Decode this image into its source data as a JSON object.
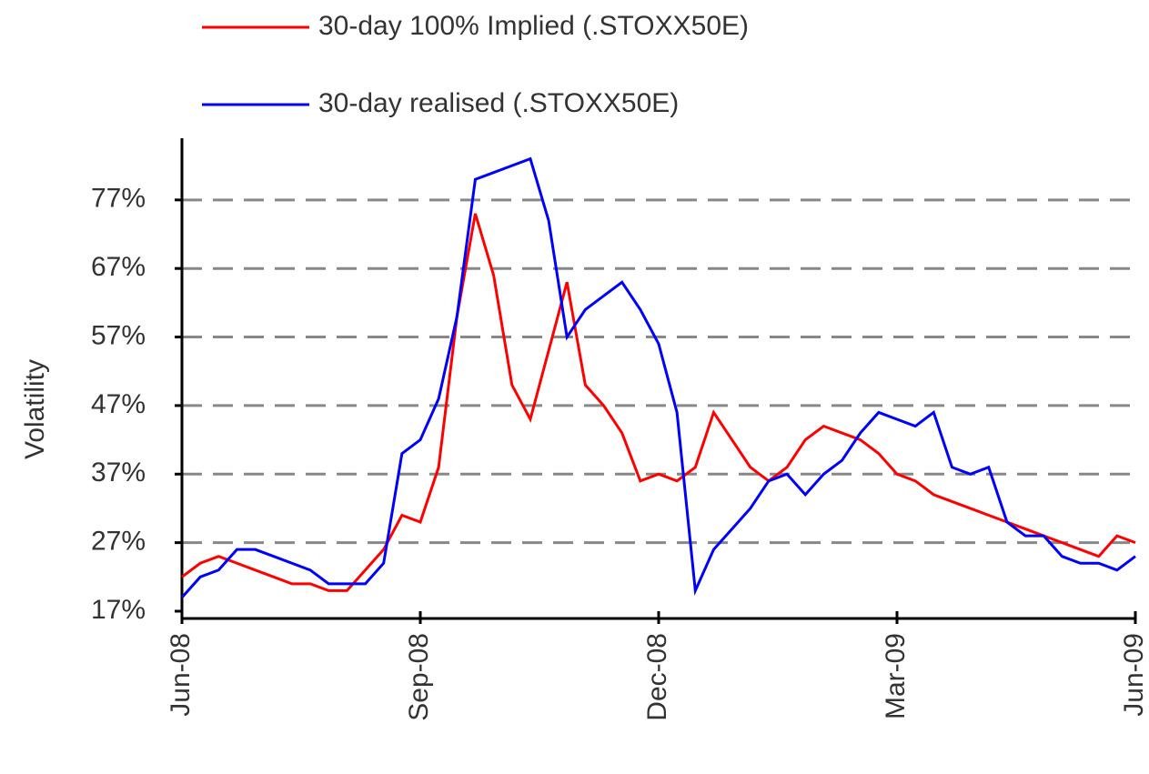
{
  "chart_data": {
    "type": "line",
    "y_label": "Volatility",
    "x": [
      0,
      1,
      2,
      3,
      4,
      5,
      6,
      7,
      8,
      9,
      10,
      11,
      12,
      13,
      14,
      15,
      16,
      17,
      18,
      19,
      20,
      21,
      22,
      23,
      24,
      25,
      26,
      27,
      28,
      29,
      30,
      31,
      32,
      33,
      34,
      35,
      36,
      37,
      38,
      39,
      40,
      41,
      42,
      43,
      44,
      45,
      46,
      47,
      48,
      49,
      50,
      51,
      52
    ],
    "series": [
      {
        "name": "30-day 100% Implied (.STOXX50E)",
        "color": "#ff0000",
        "values": [
          22,
          24,
          25,
          24,
          23,
          22,
          21,
          21,
          20,
          20,
          23,
          26,
          31,
          30,
          38,
          60,
          75,
          66,
          50,
          45,
          55,
          65,
          50,
          47,
          43,
          36,
          37,
          36,
          38,
          46,
          42,
          38,
          36,
          38,
          42,
          44,
          43,
          42,
          40,
          37,
          36,
          34,
          33,
          32,
          31,
          30,
          29,
          28,
          27,
          26,
          25,
          28,
          27
        ]
      },
      {
        "name": "30-day realised (.STOXX50E)",
        "color": "#0000ff",
        "values": [
          19,
          22,
          23,
          26,
          26,
          25,
          24,
          23,
          21,
          21,
          21,
          24,
          40,
          42,
          48,
          60,
          80,
          81,
          82,
          83,
          74,
          57,
          61,
          63,
          65,
          61,
          56,
          46,
          20,
          26,
          29,
          32,
          36,
          37,
          34,
          37,
          39,
          43,
          46,
          45,
          44,
          46,
          38,
          37,
          38,
          30,
          28,
          28,
          25,
          24,
          24,
          23,
          25
        ]
      }
    ],
    "xlim": [
      0,
      52
    ],
    "xticks": [
      {
        "value": 0,
        "label": "Jun-08"
      },
      {
        "value": 13,
        "label": "Sep-08"
      },
      {
        "value": 26,
        "label": "Dec-08"
      },
      {
        "value": 39,
        "label": "Mar-09"
      },
      {
        "value": 52,
        "label": "Jun-09"
      }
    ],
    "ylim": [
      17,
      86
    ],
    "yticks": [
      {
        "value": 17,
        "label": "17%"
      },
      {
        "value": 27,
        "label": "27%"
      },
      {
        "value": 37,
        "label": "37%"
      },
      {
        "value": 47,
        "label": "47%"
      },
      {
        "value": 57,
        "label": "57%"
      },
      {
        "value": 67,
        "label": "67%"
      },
      {
        "value": 77,
        "label": "77%"
      }
    ],
    "grid": true
  }
}
